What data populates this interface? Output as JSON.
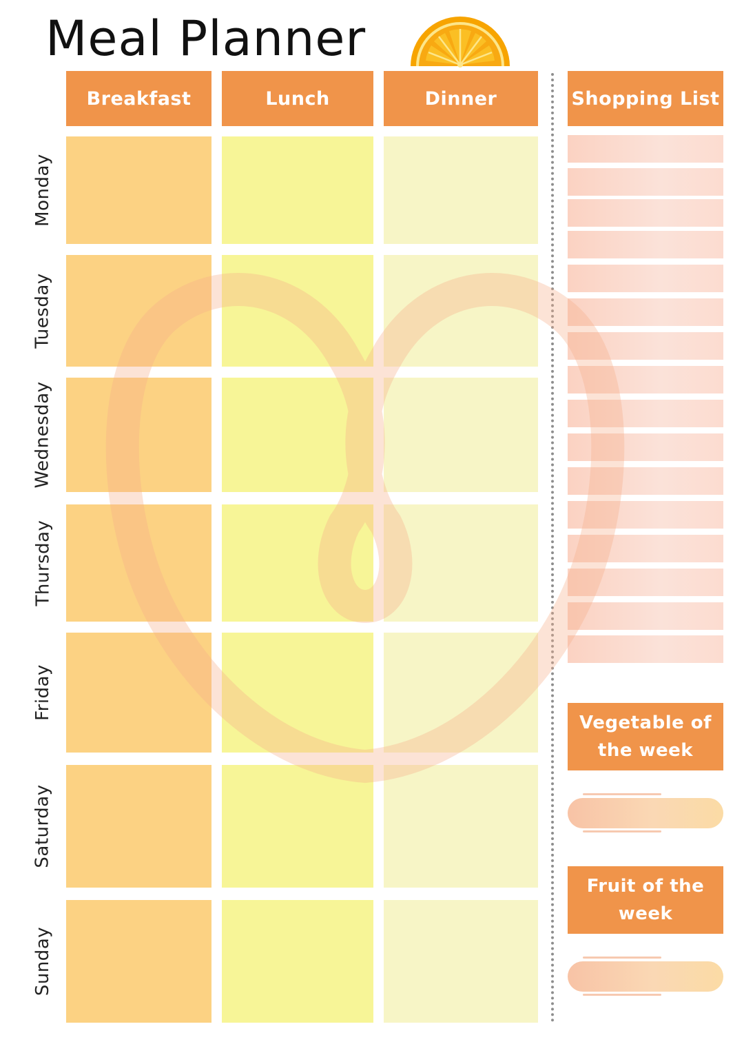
{
  "title": "Meal Planner",
  "columns": {
    "breakfast": "Breakfast",
    "lunch": "Lunch",
    "dinner": "Dinner",
    "shopping": "Shopping List"
  },
  "days": [
    "Monday",
    "Tuesday",
    "Wednesday",
    "Thursday",
    "Friday",
    "Saturday",
    "Sunday"
  ],
  "sidebar": {
    "vegetable_label": "Vegetable of the week",
    "fruit_label": "Fruit of the week"
  },
  "colors": {
    "header_orange": "#f0944a",
    "breakfast_cell": "#fcd283",
    "lunch_cell": "#f7f597",
    "dinner_cell": "#f7f5c6",
    "shopping_line": "#fbd9cc"
  },
  "icons": {
    "top_decoration": "orange-slice-icon",
    "watermark": "heart-loop-icon"
  }
}
